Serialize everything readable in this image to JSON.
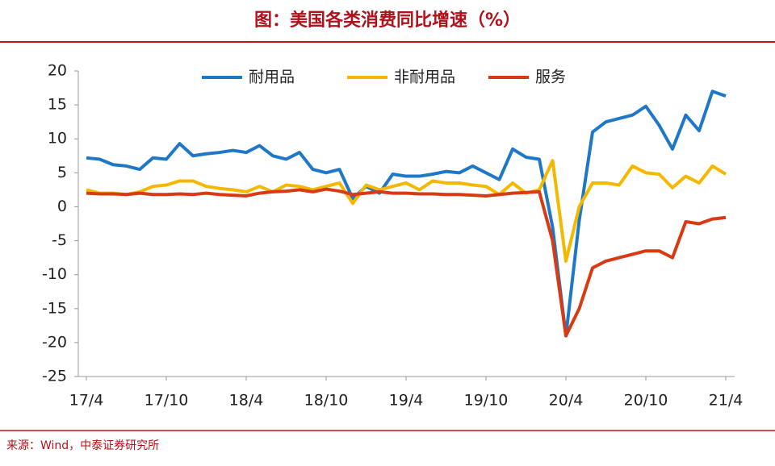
{
  "chart_data": {
    "type": "line",
    "title": "图：美国各类消费同比增速（%）",
    "source": "来源：Wind，中泰证券研究所",
    "categories": [
      "17/4",
      null,
      null,
      null,
      null,
      null,
      "17/10",
      null,
      null,
      null,
      null,
      null,
      "18/4",
      null,
      null,
      null,
      null,
      null,
      "18/10",
      null,
      null,
      null,
      null,
      null,
      "19/4",
      null,
      null,
      null,
      null,
      null,
      "19/10",
      null,
      null,
      null,
      null,
      null,
      "20/4",
      null,
      null,
      null,
      null,
      null,
      "20/10",
      null,
      null,
      null,
      null,
      null,
      "21/4"
    ],
    "series": [
      {
        "name": "耐用品",
        "color": "#1f77c8",
        "values": [
          7.2,
          7.0,
          6.2,
          6.0,
          5.5,
          7.2,
          7.0,
          9.3,
          7.5,
          7.8,
          8.0,
          8.3,
          8.0,
          9.0,
          7.5,
          7.0,
          8.0,
          5.5,
          5.0,
          5.5,
          1.2,
          3.0,
          2.0,
          4.8,
          4.5,
          4.5,
          4.8,
          5.2,
          5.0,
          6.0,
          5.0,
          4.0,
          8.5,
          7.3,
          7.0,
          -3,
          -19,
          -2,
          11,
          12.5,
          13,
          13.5,
          14.8,
          12,
          8.5,
          13.5,
          11.2,
          17,
          16.3
        ]
      },
      {
        "name": "非耐用品",
        "color": "#f5b800",
        "values": [
          2.5,
          2.0,
          2.0,
          1.8,
          2.2,
          3.0,
          3.2,
          3.8,
          3.8,
          3.0,
          2.7,
          2.5,
          2.2,
          3.0,
          2.2,
          3.2,
          3.0,
          2.5,
          3.0,
          3.5,
          0.5,
          3.2,
          2.5,
          3.0,
          3.5,
          2.5,
          3.8,
          3.5,
          3.5,
          3.2,
          3.0,
          1.8,
          3.5,
          2.0,
          2.5,
          6.8,
          -8,
          0,
          3.5,
          3.5,
          3.2,
          6.0,
          5.0,
          4.8,
          2.8,
          4.5,
          3.5,
          6.0,
          4.8
        ]
      },
      {
        "name": "服务",
        "color": "#d83a14",
        "values": [
          2.0,
          1.9,
          1.9,
          1.8,
          2.0,
          1.8,
          1.8,
          1.9,
          1.8,
          2.0,
          1.8,
          1.7,
          1.6,
          2.0,
          2.2,
          2.3,
          2.5,
          2.2,
          2.6,
          2.3,
          1.8,
          2.0,
          2.2,
          2.0,
          2.0,
          1.9,
          1.9,
          1.8,
          1.8,
          1.7,
          1.6,
          1.8,
          2.0,
          2.1,
          2.2,
          -5,
          -19,
          -15,
          -9,
          -8,
          -7.5,
          -7,
          -6.5,
          -6.5,
          -7.5,
          -2.2,
          -2.5,
          -1.8,
          -1.6
        ]
      }
    ],
    "ylim": [
      -25,
      20
    ],
    "yticks": [
      -25,
      -20,
      -15,
      -10,
      -5,
      0,
      5,
      10,
      15,
      20
    ],
    "grid": false,
    "legend": "top"
  }
}
